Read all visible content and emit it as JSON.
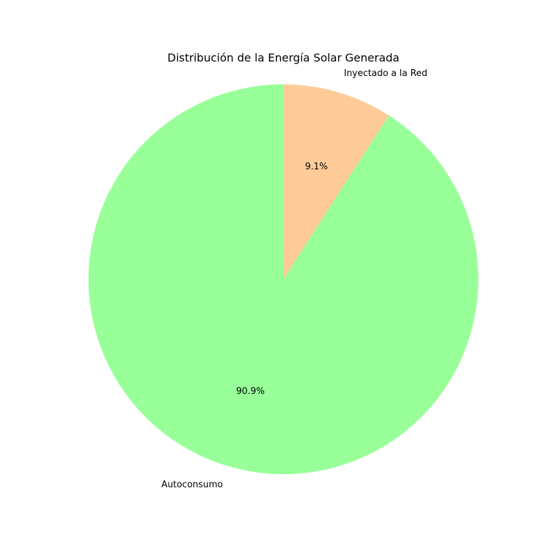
{
  "chart_data": {
    "type": "pie",
    "title": "Distribución de la Energía Solar Generada",
    "slices": [
      {
        "label": "Inyectado a la Red",
        "value": 9.1,
        "pct_label": "9.1%",
        "color": "#ffcc99"
      },
      {
        "label": "Autoconsumo",
        "value": 90.9,
        "pct_label": "90.9%",
        "color": "#99ff99"
      }
    ],
    "start_angle_deg": 90,
    "direction": "clockwise"
  }
}
